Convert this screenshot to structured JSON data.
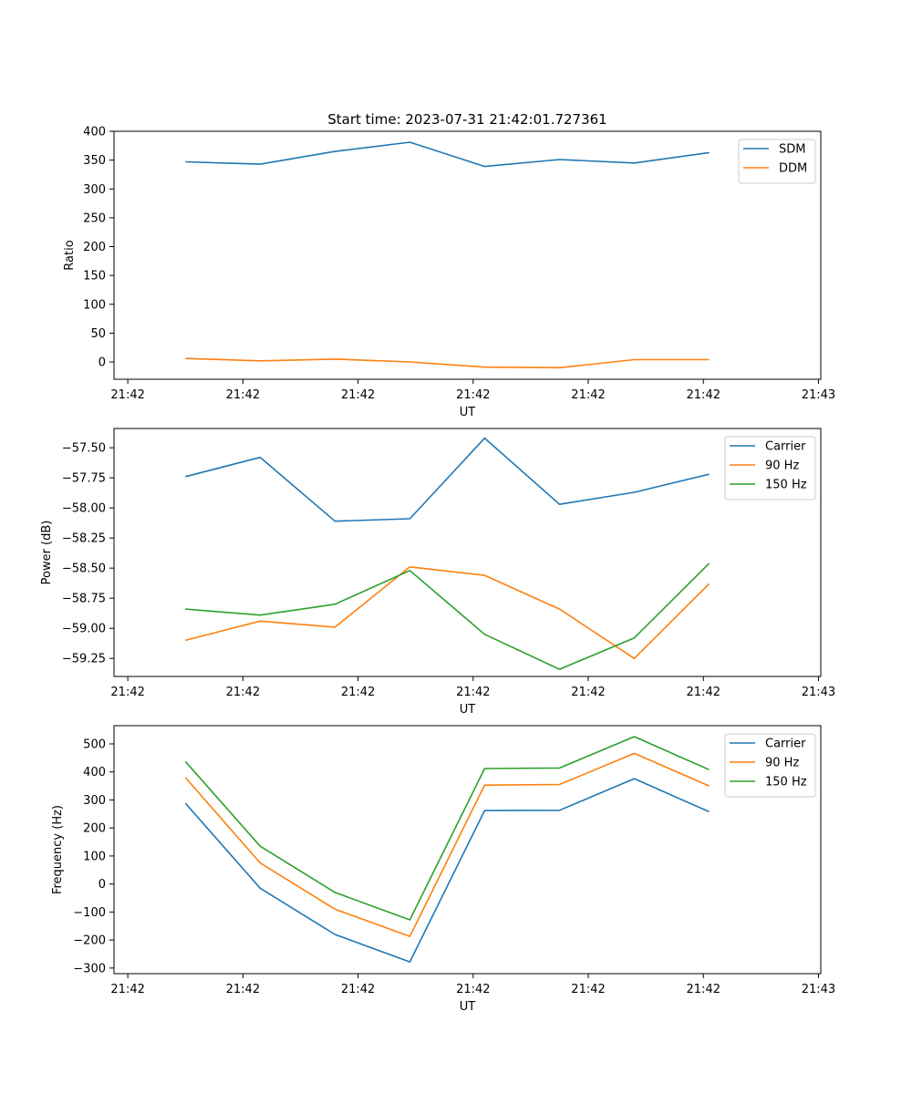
{
  "title": "Start time: 2023-07-31 21:42:01.727361",
  "chart_data": [
    {
      "type": "line",
      "xlabel": "UT",
      "ylabel": "Ratio",
      "x_tick_labels": [
        "21:42",
        "21:42",
        "21:42",
        "21:42",
        "21:42",
        "21:42",
        "21:43"
      ],
      "xlim": [
        -0.12,
        6.02
      ],
      "ylim": [
        -30,
        400
      ],
      "y_ticks": [
        0,
        50,
        100,
        150,
        200,
        250,
        300,
        350,
        400
      ],
      "y_tick_labels": [
        "0",
        "50",
        "100",
        "150",
        "200",
        "250",
        "300",
        "350",
        "400"
      ],
      "x": [
        0.5,
        1.15,
        1.8,
        2.45,
        3.1,
        3.75,
        4.4,
        5.05
      ],
      "legend_position": "upper right",
      "series": [
        {
          "name": "SDM",
          "color": "#1f77b4",
          "values": [
            347,
            343,
            365,
            381,
            339,
            351,
            345,
            363
          ]
        },
        {
          "name": "DDM",
          "color": "#ff7f0e",
          "values": [
            6,
            2,
            5,
            0,
            -9,
            -10,
            4,
            4
          ]
        }
      ]
    },
    {
      "type": "line",
      "xlabel": "UT",
      "ylabel": "Power (dB)",
      "x_tick_labels": [
        "21:42",
        "21:42",
        "21:42",
        "21:42",
        "21:42",
        "21:42",
        "21:43"
      ],
      "xlim": [
        -0.12,
        6.02
      ],
      "ylim": [
        -59.4,
        -57.34
      ],
      "y_ticks": [
        -59.25,
        -59.0,
        -58.75,
        -58.5,
        -58.25,
        -58.0,
        -57.75,
        -57.5
      ],
      "y_tick_labels": [
        "−59.25",
        "−59.00",
        "−58.75",
        "−58.50",
        "−58.25",
        "−58.00",
        "−57.75",
        "−57.50"
      ],
      "x": [
        0.5,
        1.15,
        1.8,
        2.45,
        3.1,
        3.75,
        4.4,
        5.05
      ],
      "legend_position": "upper right",
      "series": [
        {
          "name": "Carrier",
          "color": "#1f77b4",
          "values": [
            -57.74,
            -57.58,
            -58.11,
            -58.09,
            -57.42,
            -57.97,
            -57.87,
            -57.72
          ]
        },
        {
          "name": "90 Hz",
          "color": "#ff7f0e",
          "values": [
            -59.1,
            -58.94,
            -58.99,
            -58.49,
            -58.56,
            -58.84,
            -59.25,
            -58.63
          ]
        },
        {
          "name": "150 Hz",
          "color": "#2ca02c",
          "values": [
            -58.84,
            -58.89,
            -58.8,
            -58.52,
            -59.05,
            -59.34,
            -59.08,
            -58.46
          ]
        }
      ]
    },
    {
      "type": "line",
      "xlabel": "UT",
      "ylabel": "Frequency (Hz)",
      "x_tick_labels": [
        "21:42",
        "21:42",
        "21:42",
        "21:42",
        "21:42",
        "21:42",
        "21:43"
      ],
      "xlim": [
        -0.12,
        6.02
      ],
      "ylim": [
        -320,
        565
      ],
      "y_ticks": [
        -300,
        -200,
        -100,
        0,
        100,
        200,
        300,
        400,
        500
      ],
      "y_tick_labels": [
        "−300",
        "−200",
        "−100",
        "0",
        "100",
        "200",
        "300",
        "400",
        "500"
      ],
      "x": [
        0.5,
        1.15,
        1.8,
        2.45,
        3.1,
        3.75,
        4.4,
        5.05
      ],
      "legend_position": "upper right",
      "series": [
        {
          "name": "Carrier",
          "color": "#1f77b4",
          "values": [
            288,
            -15,
            -180,
            -278,
            262,
            263,
            376,
            258
          ]
        },
        {
          "name": "90 Hz",
          "color": "#ff7f0e",
          "values": [
            380,
            75,
            -90,
            -187,
            353,
            355,
            466,
            350
          ]
        },
        {
          "name": "150 Hz",
          "color": "#2ca02c",
          "values": [
            437,
            135,
            -30,
            -128,
            412,
            414,
            526,
            408
          ]
        }
      ]
    }
  ]
}
